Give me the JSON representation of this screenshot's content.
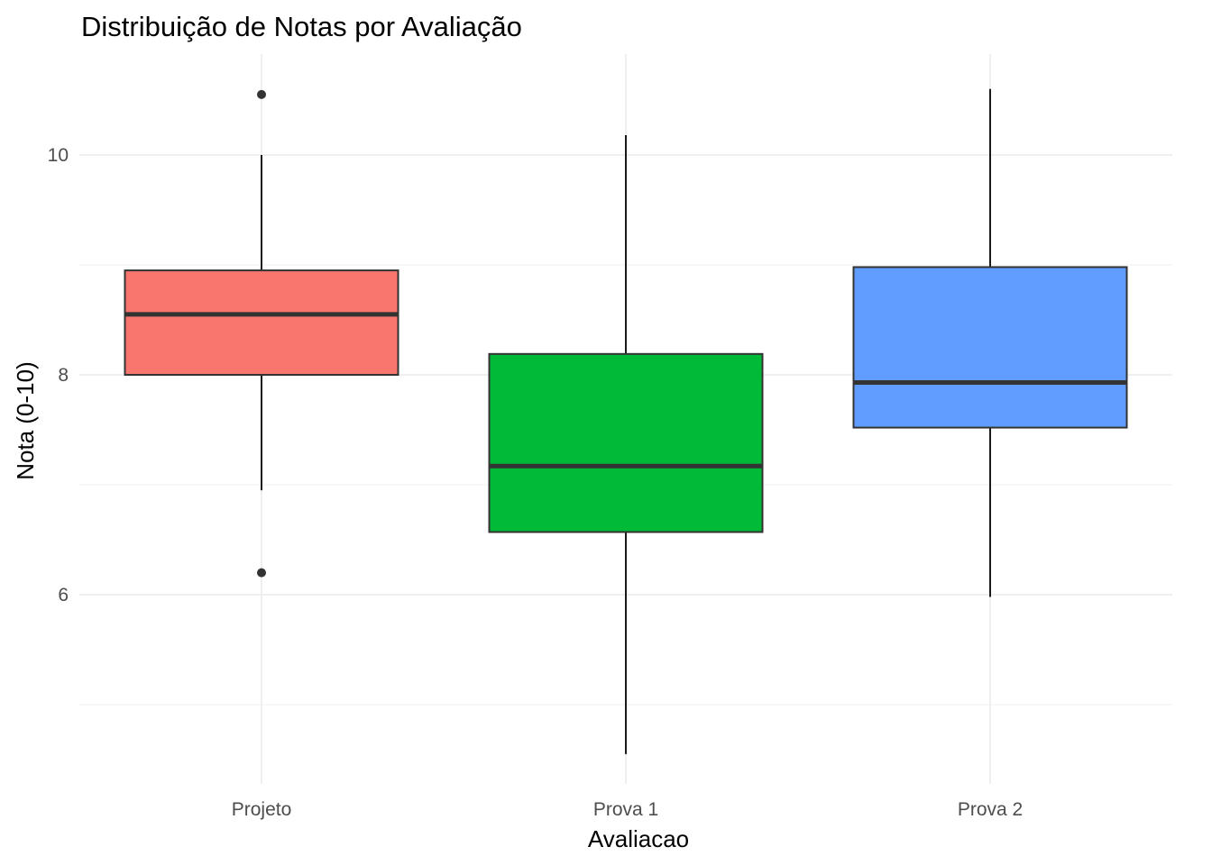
{
  "chart_data": {
    "type": "boxplot",
    "title": "Distribuição de Notas por Avaliação",
    "xlabel": "Avaliacao",
    "ylabel": "Nota (0-10)",
    "ylim": [
      4.3,
      10.9
    ],
    "y_ticks": [
      6,
      8,
      10
    ],
    "y_minor_ticks": [
      5,
      7,
      9
    ],
    "grid": true,
    "legend": "none",
    "categories": [
      "Projeto",
      "Prova 1",
      "Prova 2"
    ],
    "boxes": [
      {
        "category": "Projeto",
        "color": "#F8766D",
        "whisker_low": 6.95,
        "q1": 8.0,
        "median": 8.55,
        "q3": 8.95,
        "whisker_high": 10.0,
        "outliers": [
          10.55,
          6.2
        ]
      },
      {
        "category": "Prova 1",
        "color": "#00BA38",
        "whisker_low": 4.55,
        "q1": 6.57,
        "median": 7.17,
        "q3": 8.19,
        "whisker_high": 10.18,
        "outliers": []
      },
      {
        "category": "Prova 2",
        "color": "#619CFF",
        "whisker_low": 5.98,
        "q1": 7.52,
        "median": 7.93,
        "q3": 8.98,
        "whisker_high": 10.6,
        "outliers": []
      }
    ]
  }
}
